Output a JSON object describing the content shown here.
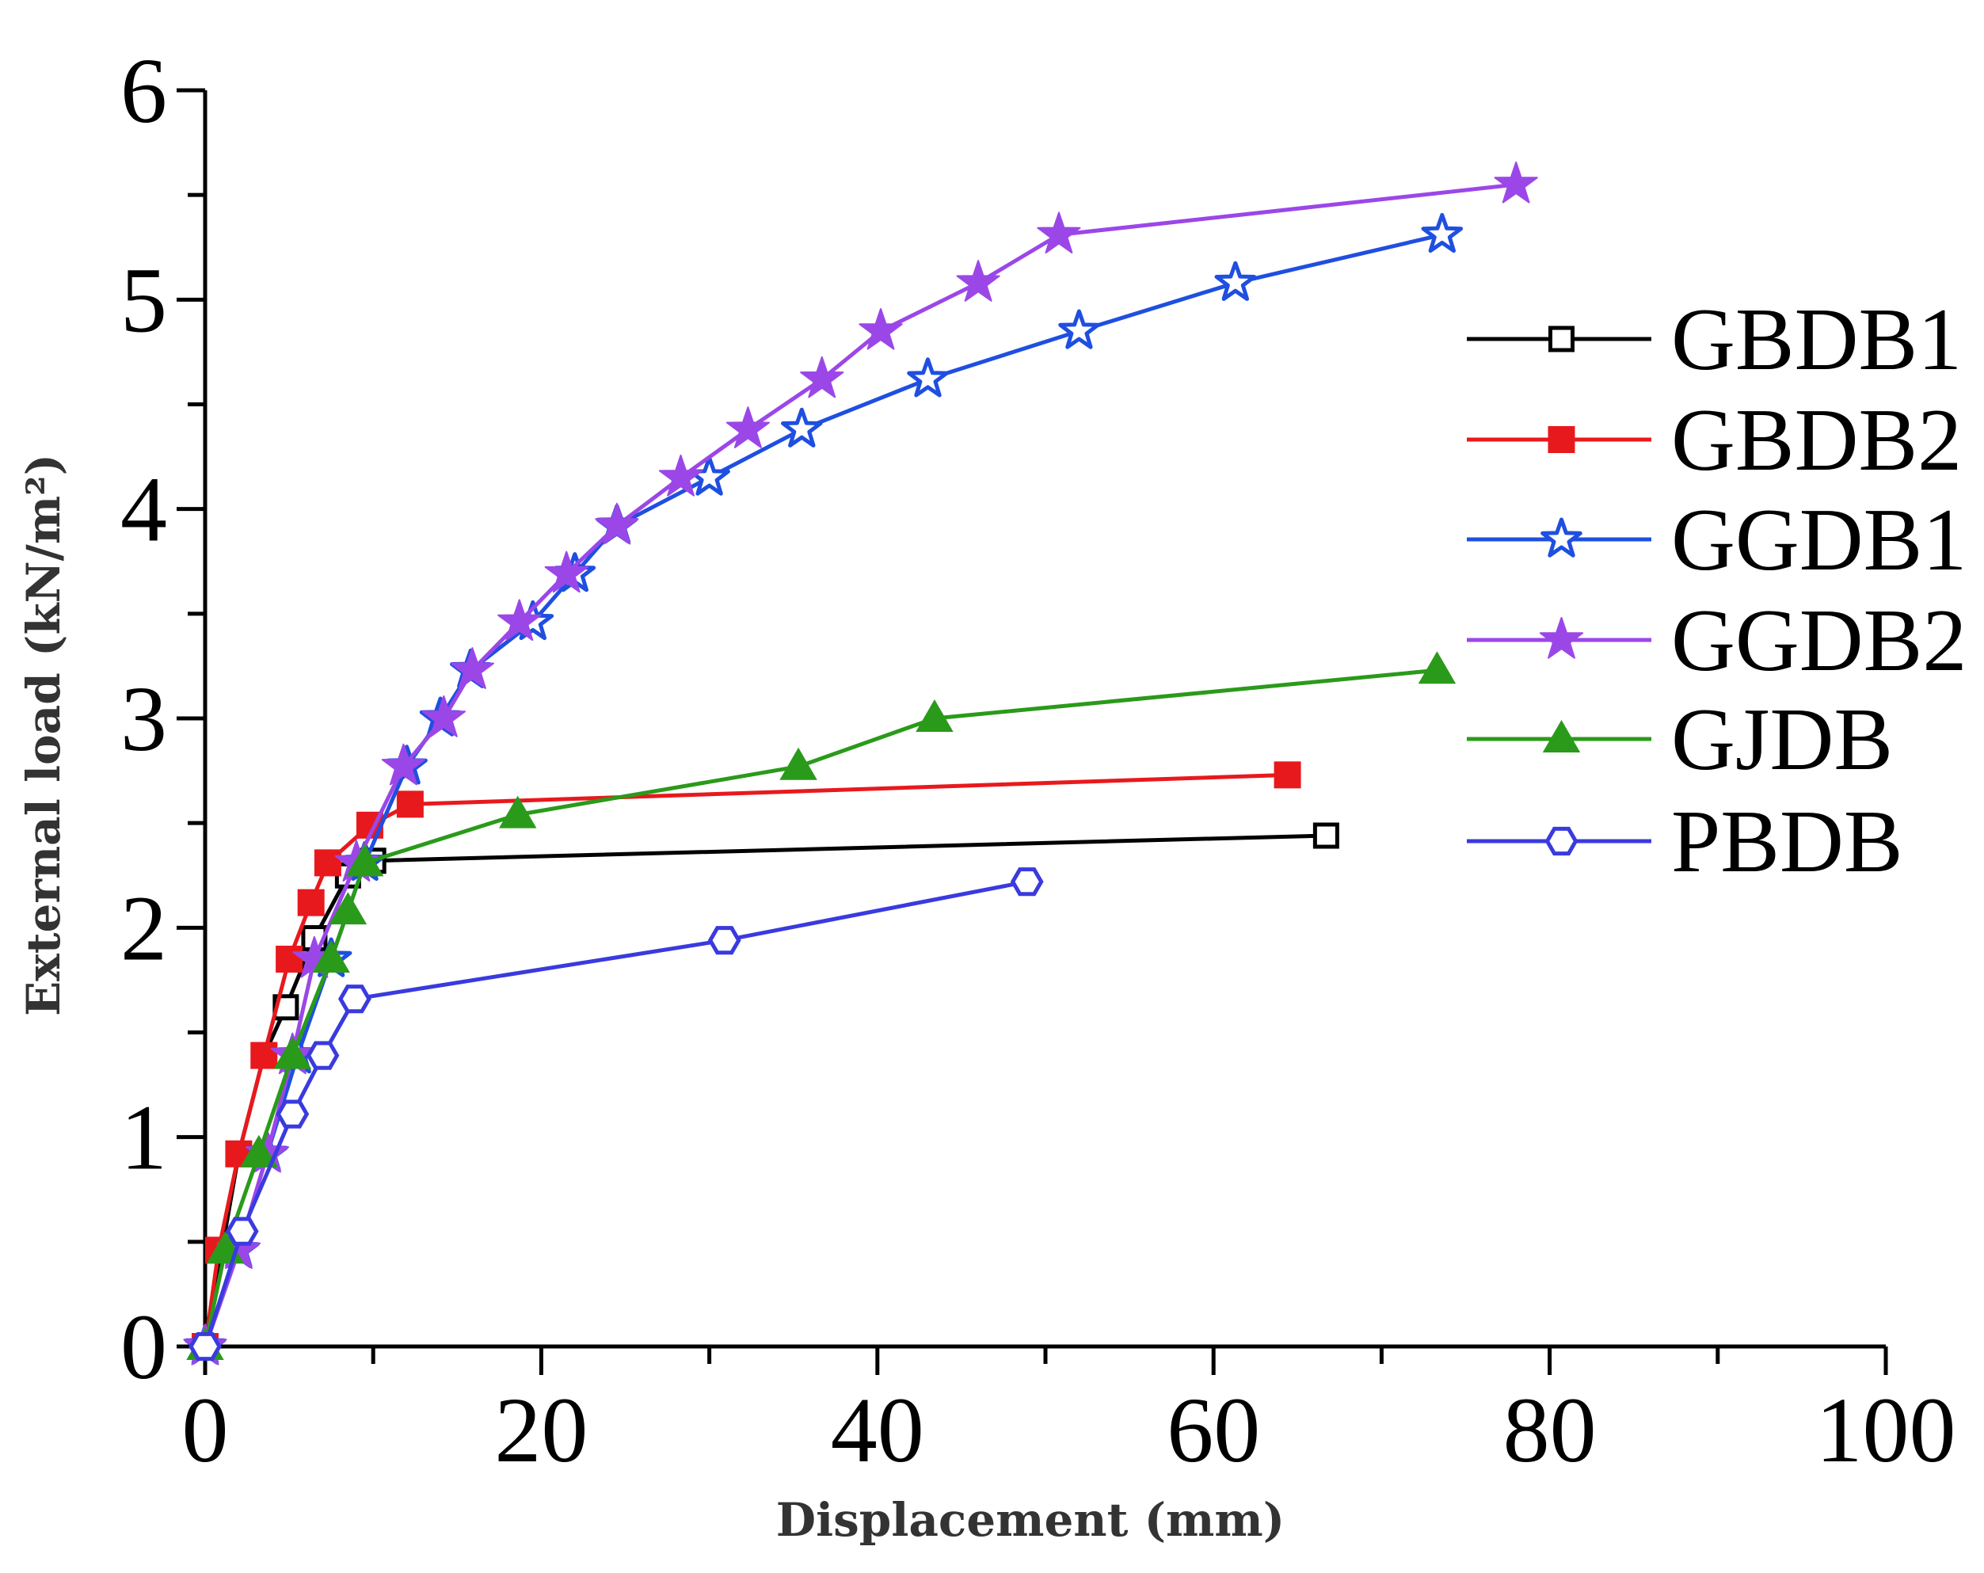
{
  "chart_data": {
    "type": "line",
    "xlabel": "Displacement (mm)",
    "ylabel": "External load (kN/m²)",
    "xlim": [
      0,
      100
    ],
    "ylim": [
      0,
      6
    ],
    "xticks": [
      0,
      20,
      40,
      60,
      80,
      100
    ],
    "xtick_labels": [
      "0",
      "20",
      "40",
      "60",
      "80",
      "100"
    ],
    "yticks": [
      0,
      1,
      2,
      3,
      4,
      5,
      6
    ],
    "ytick_labels": [
      "0",
      "1",
      "2",
      "3",
      "4",
      "5",
      "6"
    ],
    "grid": false,
    "legend_position": "right",
    "series": [
      {
        "name": "GBDB1",
        "color": "#000000",
        "marker": "square-open",
        "x": [
          0,
          1,
          2,
          3.5,
          4.8,
          6.5,
          8.5,
          10,
          66.7
        ],
        "y": [
          0,
          0.46,
          0.92,
          1.39,
          1.62,
          1.95,
          2.25,
          2.32,
          2.44
        ]
      },
      {
        "name": "GBDB2",
        "color": "#e8191d",
        "marker": "square-filled",
        "x": [
          0,
          0.8,
          2,
          3.5,
          5,
          6.3,
          7.3,
          9.8,
          12.2,
          64.4
        ],
        "y": [
          0,
          0.46,
          0.92,
          1.39,
          1.85,
          2.12,
          2.31,
          2.49,
          2.59,
          2.73
        ]
      },
      {
        "name": "GGDB1",
        "color": "#1f4fe0",
        "marker": "star-open",
        "x": [
          0,
          2,
          3.7,
          5.5,
          7.5,
          9.5,
          12,
          14,
          15.8,
          19.5,
          22,
          24.5,
          30,
          35.5,
          43,
          52,
          61.3,
          73.6
        ],
        "y": [
          0,
          0.46,
          0.92,
          1.39,
          1.85,
          2.31,
          2.77,
          3.0,
          3.23,
          3.46,
          3.69,
          3.92,
          4.15,
          4.38,
          4.62,
          4.85,
          5.08,
          5.31
        ]
      },
      {
        "name": "GGDB2",
        "color": "#9b47e8",
        "marker": "star-filled",
        "x": [
          0,
          2,
          3.7,
          5.2,
          6.5,
          9,
          11.8,
          14.2,
          15.9,
          18.7,
          21.5,
          24.5,
          28.3,
          32.3,
          36.7,
          40.2,
          46,
          50.8,
          78
        ],
        "y": [
          0,
          0.46,
          0.92,
          1.39,
          1.85,
          2.31,
          2.77,
          3.0,
          3.23,
          3.46,
          3.69,
          3.92,
          4.15,
          4.38,
          4.62,
          4.85,
          5.08,
          5.31,
          5.55
        ]
      },
      {
        "name": "GJDB",
        "color": "#2a9a1a",
        "marker": "triangle-filled",
        "x": [
          0,
          1.2,
          3.2,
          5.2,
          7.5,
          8.5,
          9.5,
          18.6,
          35.3,
          43.4,
          73.3
        ],
        "y": [
          0,
          0.46,
          0.92,
          1.39,
          1.85,
          2.08,
          2.31,
          2.54,
          2.77,
          3.0,
          3.23
        ]
      },
      {
        "name": "PBDB",
        "color": "#3a3adf",
        "marker": "hexagon-open",
        "x": [
          0,
          2.2,
          5.2,
          7,
          8.9,
          30.9,
          48.9
        ],
        "y": [
          0,
          0.55,
          1.11,
          1.39,
          1.66,
          1.94,
          2.22
        ]
      }
    ]
  }
}
